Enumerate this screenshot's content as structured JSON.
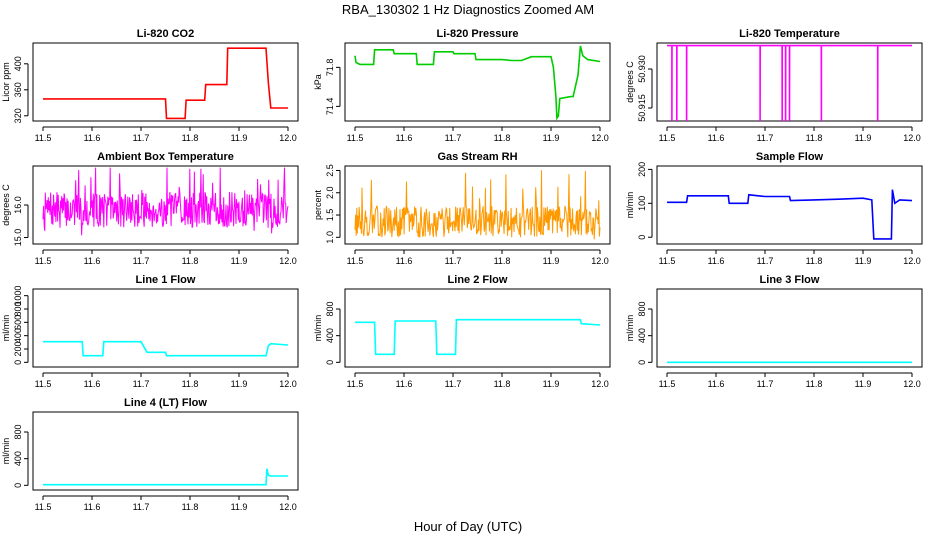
{
  "figure": {
    "title": "RBA_130302  1 Hz Diagnostics Zoomed AM",
    "xlabel": "Hour of Day (UTC)"
  },
  "chart_data": [
    {
      "type": "line",
      "title": "Li-820 CO2",
      "ylabel": "Licor ppm",
      "color": "#ff0000",
      "xlim": [
        11.5,
        12.0
      ],
      "ylim": [
        312,
        432
      ],
      "xticks": [
        11.5,
        11.6,
        11.7,
        11.8,
        11.9,
        12.0
      ],
      "xtick_labels": [
        "11.5",
        "11.6",
        "11.7",
        "11.8",
        "11.9",
        "12.0"
      ],
      "yticks": [
        320,
        360,
        400
      ],
      "ytick_labels": [
        "320",
        "360",
        "400"
      ],
      "series": [
        {
          "x": [
            11.5,
            11.75,
            11.752,
            11.79,
            11.792,
            11.83,
            11.832,
            11.875,
            11.877,
            11.955,
            11.96,
            11.965,
            12.0
          ],
          "y": [
            346,
            346,
            316,
            316,
            344,
            344,
            368,
            368,
            424,
            424,
            370,
            332,
            332
          ]
        }
      ]
    },
    {
      "type": "line",
      "title": "Li-820 Pressure",
      "ylabel": "kPa",
      "color": "#00cc00",
      "xlim": [
        11.5,
        12.0
      ],
      "ylim": [
        71.25,
        72.05
      ],
      "xticks": [
        11.5,
        11.6,
        11.7,
        11.8,
        11.9,
        12.0
      ],
      "xtick_labels": [
        "11.5",
        "11.6",
        "11.7",
        "11.8",
        "11.9",
        "12.0"
      ],
      "yticks": [
        71.4,
        71.8
      ],
      "ytick_labels": [
        "71.4",
        "71.8"
      ],
      "series": [
        {
          "x": [
            11.5,
            11.502,
            11.51,
            11.538,
            11.54,
            11.578,
            11.58,
            11.625,
            11.627,
            11.66,
            11.662,
            11.7,
            11.702,
            11.745,
            11.747,
            11.78,
            11.8,
            11.82,
            11.84,
            11.86,
            11.87,
            11.9,
            11.905,
            11.91,
            11.912,
            11.915,
            11.918,
            11.94,
            11.945,
            11.955,
            11.96,
            11.965,
            11.975,
            12.0
          ],
          "y": [
            71.92,
            71.85,
            71.83,
            71.83,
            71.98,
            71.98,
            71.94,
            71.94,
            71.83,
            71.83,
            71.96,
            71.96,
            71.94,
            71.94,
            71.88,
            71.88,
            71.88,
            71.87,
            71.87,
            71.91,
            71.91,
            71.91,
            71.8,
            71.5,
            71.28,
            71.3,
            71.48,
            71.5,
            71.5,
            71.72,
            72.02,
            71.92,
            71.88,
            71.86
          ]
        }
      ]
    },
    {
      "type": "line",
      "title": "Li-820 Temperature",
      "ylabel": "degrees C",
      "color": "#ff00ff",
      "xlim": [
        11.5,
        12.0
      ],
      "ylim": [
        50.91,
        50.94
      ],
      "xticks": [
        11.5,
        11.6,
        11.7,
        11.8,
        11.9,
        12.0
      ],
      "xtick_labels": [
        "11.5",
        "11.6",
        "11.7",
        "11.8",
        "11.9",
        "12.0"
      ],
      "yticks": [
        50.915,
        50.93
      ],
      "ytick_labels": [
        "50.915",
        "50.930"
      ],
      "series": [
        {
          "x": [
            11.5,
            11.51,
            11.5101,
            11.5102,
            11.52,
            11.5201,
            11.5202,
            11.54,
            11.5401,
            11.5402,
            11.69,
            11.6901,
            11.6902,
            11.735,
            11.7351,
            11.7352,
            11.742,
            11.7421,
            11.7422,
            11.75,
            11.7501,
            11.7502,
            11.815,
            11.8151,
            11.8152,
            11.93,
            11.9301,
            11.9302,
            12.0
          ],
          "y": [
            50.939,
            50.939,
            50.91,
            50.939,
            50.939,
            50.91,
            50.939,
            50.939,
            50.91,
            50.939,
            50.939,
            50.91,
            50.939,
            50.939,
            50.91,
            50.939,
            50.939,
            50.91,
            50.939,
            50.939,
            50.91,
            50.939,
            50.939,
            50.91,
            50.939,
            50.939,
            50.91,
            50.939,
            50.939
          ]
        }
      ]
    },
    {
      "type": "line",
      "title": "Ambient Box Temperature",
      "ylabel": "degrees C",
      "color": "#ff00ff",
      "xlim": [
        11.5,
        12.0
      ],
      "ylim": [
        14.8,
        17.2
      ],
      "xticks": [
        11.5,
        11.6,
        11.7,
        11.8,
        11.9,
        12.0
      ],
      "xtick_labels": [
        "11.5",
        "11.6",
        "11.7",
        "11.8",
        "11.9",
        "12.0"
      ],
      "yticks": [
        15.0,
        16.0
      ],
      "ytick_labels": [
        "15.0",
        "16.0"
      ],
      "noise": {
        "center": 15.85,
        "amplitude": 0.55,
        "spike": 1.15,
        "seed": 7
      }
    },
    {
      "type": "line",
      "title": "Gas Stream RH",
      "ylabel": "percent",
      "color": "#ff9900",
      "xlim": [
        11.5,
        12.0
      ],
      "ylim": [
        0.85,
        2.6
      ],
      "xticks": [
        11.5,
        11.6,
        11.7,
        11.8,
        11.9,
        12.0
      ],
      "xtick_labels": [
        "11.5",
        "11.6",
        "11.7",
        "11.8",
        "11.9",
        "12.0"
      ],
      "yticks": [
        1.0,
        1.5,
        2.0,
        2.5
      ],
      "ytick_labels": [
        "1.0",
        "1.5",
        "2.0",
        "2.5"
      ],
      "noise": {
        "center": 1.35,
        "amplitude": 0.35,
        "spike": 0.9,
        "seed": 13
      }
    },
    {
      "type": "line",
      "title": "Sample Flow",
      "ylabel": "ml/min",
      "color": "#0000ff",
      "xlim": [
        11.5,
        12.0
      ],
      "ylim": [
        -20,
        210
      ],
      "xticks": [
        11.5,
        11.6,
        11.7,
        11.8,
        11.9,
        12.0
      ],
      "xtick_labels": [
        "11.5",
        "11.6",
        "11.7",
        "11.8",
        "11.9",
        "12.0"
      ],
      "yticks": [
        0,
        100,
        200
      ],
      "ytick_labels": [
        "0",
        "100",
        "200"
      ],
      "series": [
        {
          "x": [
            11.5,
            11.54,
            11.542,
            11.625,
            11.627,
            11.665,
            11.667,
            11.7,
            11.75,
            11.752,
            11.8,
            11.85,
            11.9,
            11.918,
            11.922,
            11.958,
            11.96,
            11.965,
            11.975,
            12.0
          ],
          "y": [
            103,
            103,
            122,
            122,
            100,
            100,
            125,
            120,
            120,
            108,
            110,
            112,
            115,
            110,
            -5,
            -5,
            140,
            100,
            110,
            108
          ]
        }
      ]
    },
    {
      "type": "line",
      "title": "Line 1 Flow",
      "ylabel": "ml/min",
      "color": "#00ffff",
      "xlim": [
        11.5,
        12.0
      ],
      "ylim": [
        -70,
        1100
      ],
      "xticks": [
        11.5,
        11.6,
        11.7,
        11.8,
        11.9,
        12.0
      ],
      "xtick_labels": [
        "11.5",
        "11.6",
        "11.7",
        "11.8",
        "11.9",
        "12.0"
      ],
      "yticks": [
        0,
        200,
        400,
        600,
        800,
        1000
      ],
      "ytick_labels": [
        "0",
        "200",
        "400",
        "600",
        "800",
        "1000"
      ],
      "series": [
        {
          "x": [
            11.5,
            11.58,
            11.582,
            11.622,
            11.624,
            11.7,
            11.71,
            11.712,
            11.75,
            11.752,
            11.955,
            11.96,
            11.965,
            12.0
          ],
          "y": [
            310,
            310,
            100,
            100,
            310,
            310,
            180,
            150,
            150,
            100,
            100,
            250,
            280,
            260
          ]
        }
      ]
    },
    {
      "type": "line",
      "title": "Line 2 Flow",
      "ylabel": "ml/min",
      "color": "#00ffff",
      "xlim": [
        11.5,
        12.0
      ],
      "ylim": [
        -70,
        1100
      ],
      "xticks": [
        11.5,
        11.6,
        11.7,
        11.8,
        11.9,
        12.0
      ],
      "xtick_labels": [
        "11.5",
        "11.6",
        "11.7",
        "11.8",
        "11.9",
        "12.0"
      ],
      "yticks": [
        0,
        400,
        800
      ],
      "ytick_labels": [
        "0",
        "400",
        "800"
      ],
      "series": [
        {
          "x": [
            11.5,
            11.54,
            11.542,
            11.58,
            11.582,
            11.665,
            11.667,
            11.705,
            11.707,
            11.96,
            11.962,
            12.0
          ],
          "y": [
            600,
            600,
            120,
            120,
            620,
            620,
            120,
            120,
            640,
            640,
            580,
            560
          ]
        }
      ]
    },
    {
      "type": "line",
      "title": "Line 3 Flow",
      "ylabel": "ml/min",
      "color": "#00ffff",
      "xlim": [
        11.5,
        12.0
      ],
      "ylim": [
        -70,
        1100
      ],
      "xticks": [
        11.5,
        11.6,
        11.7,
        11.8,
        11.9,
        12.0
      ],
      "xtick_labels": [
        "11.5",
        "11.6",
        "11.7",
        "11.8",
        "11.9",
        "12.0"
      ],
      "yticks": [
        0,
        400,
        800
      ],
      "ytick_labels": [
        "0",
        "400",
        "800"
      ],
      "series": [
        {
          "x": [
            11.5,
            12.0
          ],
          "y": [
            0,
            0
          ]
        }
      ]
    },
    {
      "type": "line",
      "title": "Line 4 (LT) Flow",
      "ylabel": "ml/min",
      "color": "#00ffff",
      "xlim": [
        11.5,
        12.0
      ],
      "ylim": [
        -70,
        1100
      ],
      "xticks": [
        11.5,
        11.6,
        11.7,
        11.8,
        11.9,
        12.0
      ],
      "xtick_labels": [
        "11.5",
        "11.6",
        "11.7",
        "11.8",
        "11.9",
        "12.0"
      ],
      "yticks": [
        0,
        400,
        800
      ],
      "ytick_labels": [
        "0",
        "400",
        "800"
      ],
      "series": [
        {
          "x": [
            11.5,
            11.955,
            11.957,
            11.96,
            11.965,
            12.0
          ],
          "y": [
            10,
            10,
            250,
            150,
            140,
            140
          ]
        }
      ]
    }
  ]
}
